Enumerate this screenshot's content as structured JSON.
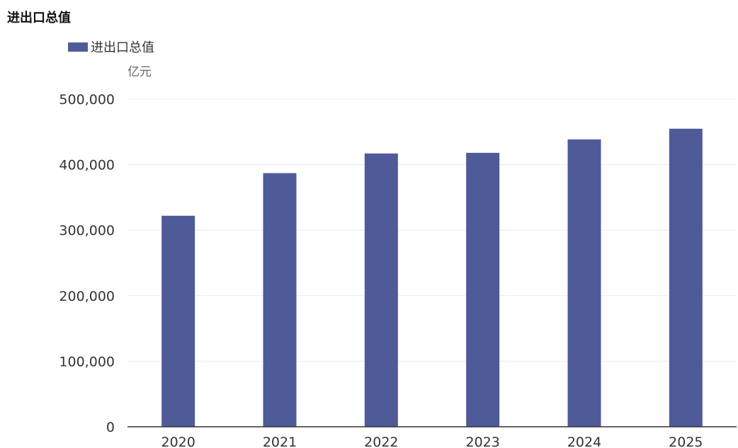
{
  "chart_data": {
    "type": "bar",
    "title": "进出口总值",
    "ylabel": "亿元",
    "categories": [
      "2020",
      "2021",
      "2022",
      "2023",
      "2024",
      "2025"
    ],
    "series": [
      {
        "name": "进出口总值",
        "values": [
          322000,
          387000,
          417000,
          418000,
          438500,
          454800
        ]
      }
    ],
    "ylim": [
      0,
      500000
    ],
    "yticks": [
      "0",
      "100,000",
      "200,000",
      "300,000",
      "400,000",
      "500,000"
    ],
    "ytick_values": [
      0,
      100000,
      200000,
      300000,
      400000,
      500000
    ],
    "legend": "top-left",
    "grid": true,
    "colors": {
      "bar": "#4f5b99",
      "grid": "#e9ebf2",
      "axis": "#333333"
    }
  }
}
